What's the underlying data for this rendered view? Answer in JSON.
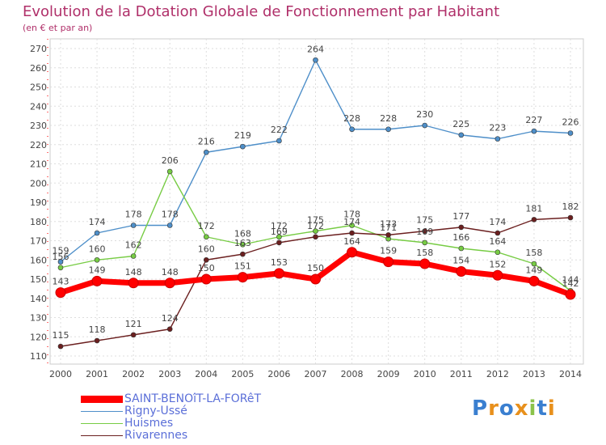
{
  "title": "Evolution de la Dotation Globale de Fonctionnement par Habitant",
  "subtitle": "(en € et par an)",
  "logo": "Proxiti",
  "chart_data": {
    "type": "line",
    "title": "Evolution de la Dotation Globale de Fonctionnement par Habitant",
    "subtitle": "(en € et par an)",
    "xlabel": "",
    "ylabel": "",
    "x": [
      "2000",
      "2001",
      "2002",
      "2003",
      "2004",
      "2005",
      "2006",
      "2007",
      "2008",
      "2009",
      "2010",
      "2011",
      "2012",
      "2013",
      "2014"
    ],
    "ylim": [
      110,
      270
    ],
    "yticks": [
      110,
      120,
      130,
      140,
      150,
      160,
      170,
      180,
      190,
      200,
      210,
      220,
      230,
      240,
      250,
      260,
      270
    ],
    "grid": true,
    "legend_position": "bottom-left",
    "series": [
      {
        "name": "SAINT-BENOîT-LA-FORêT",
        "color": "#ff0000",
        "values": [
          143,
          149,
          148,
          148,
          150,
          151,
          153,
          150,
          164,
          159,
          158,
          154,
          152,
          149,
          142
        ]
      },
      {
        "name": "Rigny-Ussé",
        "color": "#4e8fc9",
        "values": [
          159,
          174,
          178,
          178,
          216,
          219,
          222,
          264,
          228,
          228,
          230,
          225,
          223,
          227,
          226
        ]
      },
      {
        "name": "Huismes",
        "color": "#77cc44",
        "values": [
          156,
          160,
          162,
          206,
          172,
          168,
          172,
          175,
          178,
          171,
          169,
          166,
          164,
          158,
          144
        ]
      },
      {
        "name": "Rivarennes",
        "color": "#6b1f1f",
        "values": [
          115,
          118,
          121,
          124,
          160,
          163,
          169,
          172,
          174,
          173,
          175,
          177,
          174,
          181,
          182
        ]
      }
    ]
  }
}
